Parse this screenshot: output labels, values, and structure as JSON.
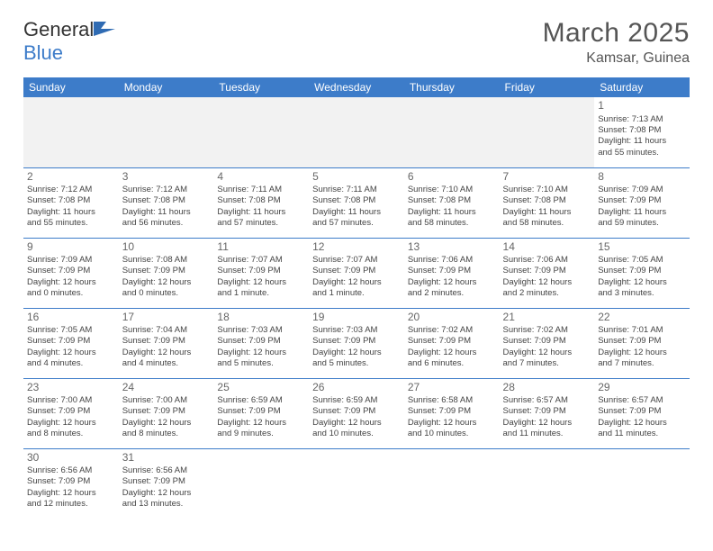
{
  "logo": {
    "word1": "General",
    "word2": "Blue"
  },
  "title": "March 2025",
  "location": "Kamsar, Guinea",
  "colors": {
    "header_bg": "#3d7cc9",
    "header_text": "#ffffff",
    "rule": "#3d7cc9",
    "blank_bg": "#f2f2f2",
    "body_text": "#444444",
    "title_text": "#555555"
  },
  "weekdays": [
    "Sunday",
    "Monday",
    "Tuesday",
    "Wednesday",
    "Thursday",
    "Friday",
    "Saturday"
  ],
  "weeks": [
    [
      null,
      null,
      null,
      null,
      null,
      null,
      {
        "n": "1",
        "sr": "Sunrise: 7:13 AM",
        "ss": "Sunset: 7:08 PM",
        "d1": "Daylight: 11 hours",
        "d2": "and 55 minutes."
      }
    ],
    [
      {
        "n": "2",
        "sr": "Sunrise: 7:12 AM",
        "ss": "Sunset: 7:08 PM",
        "d1": "Daylight: 11 hours",
        "d2": "and 55 minutes."
      },
      {
        "n": "3",
        "sr": "Sunrise: 7:12 AM",
        "ss": "Sunset: 7:08 PM",
        "d1": "Daylight: 11 hours",
        "d2": "and 56 minutes."
      },
      {
        "n": "4",
        "sr": "Sunrise: 7:11 AM",
        "ss": "Sunset: 7:08 PM",
        "d1": "Daylight: 11 hours",
        "d2": "and 57 minutes."
      },
      {
        "n": "5",
        "sr": "Sunrise: 7:11 AM",
        "ss": "Sunset: 7:08 PM",
        "d1": "Daylight: 11 hours",
        "d2": "and 57 minutes."
      },
      {
        "n": "6",
        "sr": "Sunrise: 7:10 AM",
        "ss": "Sunset: 7:08 PM",
        "d1": "Daylight: 11 hours",
        "d2": "and 58 minutes."
      },
      {
        "n": "7",
        "sr": "Sunrise: 7:10 AM",
        "ss": "Sunset: 7:08 PM",
        "d1": "Daylight: 11 hours",
        "d2": "and 58 minutes."
      },
      {
        "n": "8",
        "sr": "Sunrise: 7:09 AM",
        "ss": "Sunset: 7:09 PM",
        "d1": "Daylight: 11 hours",
        "d2": "and 59 minutes."
      }
    ],
    [
      {
        "n": "9",
        "sr": "Sunrise: 7:09 AM",
        "ss": "Sunset: 7:09 PM",
        "d1": "Daylight: 12 hours",
        "d2": "and 0 minutes."
      },
      {
        "n": "10",
        "sr": "Sunrise: 7:08 AM",
        "ss": "Sunset: 7:09 PM",
        "d1": "Daylight: 12 hours",
        "d2": "and 0 minutes."
      },
      {
        "n": "11",
        "sr": "Sunrise: 7:07 AM",
        "ss": "Sunset: 7:09 PM",
        "d1": "Daylight: 12 hours",
        "d2": "and 1 minute."
      },
      {
        "n": "12",
        "sr": "Sunrise: 7:07 AM",
        "ss": "Sunset: 7:09 PM",
        "d1": "Daylight: 12 hours",
        "d2": "and 1 minute."
      },
      {
        "n": "13",
        "sr": "Sunrise: 7:06 AM",
        "ss": "Sunset: 7:09 PM",
        "d1": "Daylight: 12 hours",
        "d2": "and 2 minutes."
      },
      {
        "n": "14",
        "sr": "Sunrise: 7:06 AM",
        "ss": "Sunset: 7:09 PM",
        "d1": "Daylight: 12 hours",
        "d2": "and 2 minutes."
      },
      {
        "n": "15",
        "sr": "Sunrise: 7:05 AM",
        "ss": "Sunset: 7:09 PM",
        "d1": "Daylight: 12 hours",
        "d2": "and 3 minutes."
      }
    ],
    [
      {
        "n": "16",
        "sr": "Sunrise: 7:05 AM",
        "ss": "Sunset: 7:09 PM",
        "d1": "Daylight: 12 hours",
        "d2": "and 4 minutes."
      },
      {
        "n": "17",
        "sr": "Sunrise: 7:04 AM",
        "ss": "Sunset: 7:09 PM",
        "d1": "Daylight: 12 hours",
        "d2": "and 4 minutes."
      },
      {
        "n": "18",
        "sr": "Sunrise: 7:03 AM",
        "ss": "Sunset: 7:09 PM",
        "d1": "Daylight: 12 hours",
        "d2": "and 5 minutes."
      },
      {
        "n": "19",
        "sr": "Sunrise: 7:03 AM",
        "ss": "Sunset: 7:09 PM",
        "d1": "Daylight: 12 hours",
        "d2": "and 5 minutes."
      },
      {
        "n": "20",
        "sr": "Sunrise: 7:02 AM",
        "ss": "Sunset: 7:09 PM",
        "d1": "Daylight: 12 hours",
        "d2": "and 6 minutes."
      },
      {
        "n": "21",
        "sr": "Sunrise: 7:02 AM",
        "ss": "Sunset: 7:09 PM",
        "d1": "Daylight: 12 hours",
        "d2": "and 7 minutes."
      },
      {
        "n": "22",
        "sr": "Sunrise: 7:01 AM",
        "ss": "Sunset: 7:09 PM",
        "d1": "Daylight: 12 hours",
        "d2": "and 7 minutes."
      }
    ],
    [
      {
        "n": "23",
        "sr": "Sunrise: 7:00 AM",
        "ss": "Sunset: 7:09 PM",
        "d1": "Daylight: 12 hours",
        "d2": "and 8 minutes."
      },
      {
        "n": "24",
        "sr": "Sunrise: 7:00 AM",
        "ss": "Sunset: 7:09 PM",
        "d1": "Daylight: 12 hours",
        "d2": "and 8 minutes."
      },
      {
        "n": "25",
        "sr": "Sunrise: 6:59 AM",
        "ss": "Sunset: 7:09 PM",
        "d1": "Daylight: 12 hours",
        "d2": "and 9 minutes."
      },
      {
        "n": "26",
        "sr": "Sunrise: 6:59 AM",
        "ss": "Sunset: 7:09 PM",
        "d1": "Daylight: 12 hours",
        "d2": "and 10 minutes."
      },
      {
        "n": "27",
        "sr": "Sunrise: 6:58 AM",
        "ss": "Sunset: 7:09 PM",
        "d1": "Daylight: 12 hours",
        "d2": "and 10 minutes."
      },
      {
        "n": "28",
        "sr": "Sunrise: 6:57 AM",
        "ss": "Sunset: 7:09 PM",
        "d1": "Daylight: 12 hours",
        "d2": "and 11 minutes."
      },
      {
        "n": "29",
        "sr": "Sunrise: 6:57 AM",
        "ss": "Sunset: 7:09 PM",
        "d1": "Daylight: 12 hours",
        "d2": "and 11 minutes."
      }
    ],
    [
      {
        "n": "30",
        "sr": "Sunrise: 6:56 AM",
        "ss": "Sunset: 7:09 PM",
        "d1": "Daylight: 12 hours",
        "d2": "and 12 minutes."
      },
      {
        "n": "31",
        "sr": "Sunrise: 6:56 AM",
        "ss": "Sunset: 7:09 PM",
        "d1": "Daylight: 12 hours",
        "d2": "and 13 minutes."
      },
      null,
      null,
      null,
      null,
      null
    ]
  ]
}
